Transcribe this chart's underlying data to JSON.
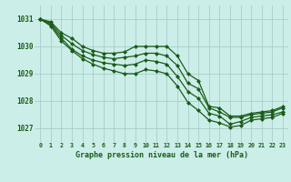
{
  "title": "Graphe pression niveau de la mer (hPa)",
  "background_color": "#cceee8",
  "grid_color": "#aacccc",
  "line_color": "#1a5c1a",
  "xlim": [
    -0.5,
    23.5
  ],
  "ylim": [
    1026.5,
    1031.5
  ],
  "xticks": [
    0,
    1,
    2,
    3,
    4,
    5,
    6,
    7,
    8,
    9,
    10,
    11,
    12,
    13,
    14,
    15,
    16,
    17,
    18,
    19,
    20,
    21,
    22,
    23
  ],
  "yticks": [
    1027,
    1028,
    1029,
    1030,
    1031
  ],
  "series": [
    [
      1031.0,
      1030.9,
      1030.5,
      1030.3,
      1030.0,
      1029.85,
      1029.75,
      1029.75,
      1029.8,
      1030.0,
      1030.0,
      1030.0,
      1030.0,
      1029.65,
      1029.0,
      1028.75,
      1027.8,
      1027.75,
      1027.45,
      1027.45,
      1027.55,
      1027.6,
      1027.65,
      1027.8
    ],
    [
      1031.0,
      1030.85,
      1030.4,
      1030.1,
      1029.85,
      1029.7,
      1029.6,
      1029.55,
      1029.6,
      1029.65,
      1029.75,
      1029.75,
      1029.65,
      1029.3,
      1028.65,
      1028.45,
      1027.75,
      1027.6,
      1027.4,
      1027.4,
      1027.5,
      1027.55,
      1027.6,
      1027.75
    ],
    [
      1031.0,
      1030.8,
      1030.3,
      1029.9,
      1029.65,
      1029.5,
      1029.4,
      1029.35,
      1029.3,
      1029.35,
      1029.5,
      1029.45,
      1029.35,
      1028.9,
      1028.35,
      1028.1,
      1027.55,
      1027.45,
      1027.15,
      1027.25,
      1027.4,
      1027.45,
      1027.5,
      1027.6
    ],
    [
      1031.0,
      1030.75,
      1030.2,
      1029.85,
      1029.55,
      1029.35,
      1029.2,
      1029.1,
      1029.0,
      1029.0,
      1029.15,
      1029.1,
      1029.0,
      1028.55,
      1027.95,
      1027.65,
      1027.3,
      1027.2,
      1027.05,
      1027.1,
      1027.3,
      1027.35,
      1027.4,
      1027.55
    ]
  ]
}
